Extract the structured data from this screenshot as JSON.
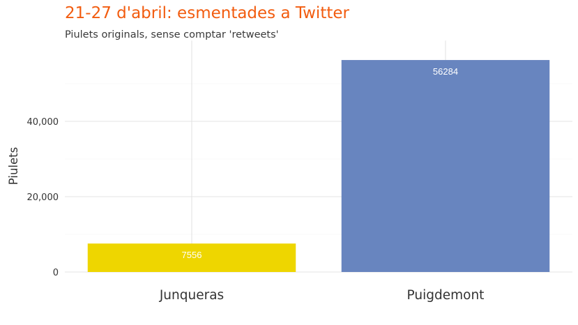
{
  "chart_data": {
    "type": "bar",
    "title": "21-27 d'abril: esmentades a Twitter",
    "subtitle": "Piulets originals, sense comptar 'retweets'",
    "xlabel": "",
    "ylabel": "Piulets",
    "categories": [
      "Junqueras",
      "Puigdemont"
    ],
    "values": [
      7556,
      56284
    ],
    "data_labels": [
      "7556",
      "56284"
    ],
    "colors": [
      "#eed600",
      "#6885bf"
    ],
    "ylim": [
      0,
      58500
    ],
    "yticks": [
      0,
      20000,
      40000
    ],
    "ytick_labels": [
      "0",
      "20,000",
      "40,000"
    ],
    "grid": true,
    "legend": "none",
    "title_color": "#f25c0f"
  }
}
